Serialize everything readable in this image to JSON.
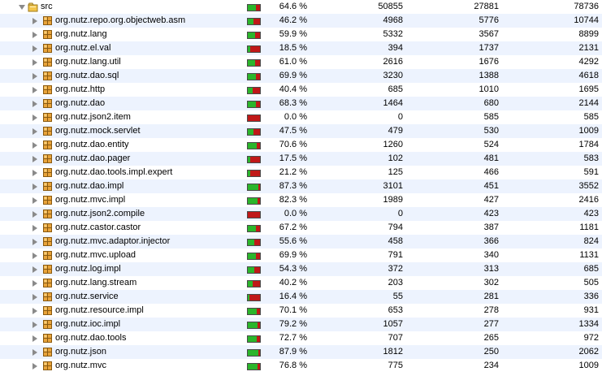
{
  "icons": {
    "expanded": "disclosure-triangle-down-icon",
    "collapsed": "disclosure-triangle-right-icon",
    "root": "source-folder-icon",
    "package": "package-icon"
  },
  "colors": {
    "covered": "#2bb52b",
    "missed": "#c01818",
    "row_alt": "#edf3fe",
    "folder": "#f3c54a",
    "package": "#e8a33a"
  },
  "rows": [
    {
      "name": "src",
      "percent": "64.6 %",
      "coverage": 0.646,
      "covered": "50855",
      "missed": "27881",
      "total": "78736",
      "expanded": true,
      "root": true
    },
    {
      "name": "org.nutz.repo.org.objectweb.asm",
      "percent": "46.2 %",
      "coverage": 0.462,
      "covered": "4968",
      "missed": "5776",
      "total": "10744"
    },
    {
      "name": "org.nutz.lang",
      "percent": "59.9 %",
      "coverage": 0.599,
      "covered": "5332",
      "missed": "3567",
      "total": "8899"
    },
    {
      "name": "org.nutz.el.val",
      "percent": "18.5 %",
      "coverage": 0.185,
      "covered": "394",
      "missed": "1737",
      "total": "2131"
    },
    {
      "name": "org.nutz.lang.util",
      "percent": "61.0 %",
      "coverage": 0.61,
      "covered": "2616",
      "missed": "1676",
      "total": "4292"
    },
    {
      "name": "org.nutz.dao.sql",
      "percent": "69.9 %",
      "coverage": 0.699,
      "covered": "3230",
      "missed": "1388",
      "total": "4618"
    },
    {
      "name": "org.nutz.http",
      "percent": "40.4 %",
      "coverage": 0.404,
      "covered": "685",
      "missed": "1010",
      "total": "1695"
    },
    {
      "name": "org.nutz.dao",
      "percent": "68.3 %",
      "coverage": 0.683,
      "covered": "1464",
      "missed": "680",
      "total": "2144"
    },
    {
      "name": "org.nutz.json2.item",
      "percent": "0.0 %",
      "coverage": 0.0,
      "covered": "0",
      "missed": "585",
      "total": "585"
    },
    {
      "name": "org.nutz.mock.servlet",
      "percent": "47.5 %",
      "coverage": 0.475,
      "covered": "479",
      "missed": "530",
      "total": "1009"
    },
    {
      "name": "org.nutz.dao.entity",
      "percent": "70.6 %",
      "coverage": 0.706,
      "covered": "1260",
      "missed": "524",
      "total": "1784"
    },
    {
      "name": "org.nutz.dao.pager",
      "percent": "17.5 %",
      "coverage": 0.175,
      "covered": "102",
      "missed": "481",
      "total": "583"
    },
    {
      "name": "org.nutz.dao.tools.impl.expert",
      "percent": "21.2 %",
      "coverage": 0.212,
      "covered": "125",
      "missed": "466",
      "total": "591"
    },
    {
      "name": "org.nutz.dao.impl",
      "percent": "87.3 %",
      "coverage": 0.873,
      "covered": "3101",
      "missed": "451",
      "total": "3552"
    },
    {
      "name": "org.nutz.mvc.impl",
      "percent": "82.3 %",
      "coverage": 0.823,
      "covered": "1989",
      "missed": "427",
      "total": "2416"
    },
    {
      "name": "org.nutz.json2.compile",
      "percent": "0.0 %",
      "coverage": 0.0,
      "covered": "0",
      "missed": "423",
      "total": "423"
    },
    {
      "name": "org.nutz.castor.castor",
      "percent": "67.2 %",
      "coverage": 0.672,
      "covered": "794",
      "missed": "387",
      "total": "1181"
    },
    {
      "name": "org.nutz.mvc.adaptor.injector",
      "percent": "55.6 %",
      "coverage": 0.556,
      "covered": "458",
      "missed": "366",
      "total": "824"
    },
    {
      "name": "org.nutz.mvc.upload",
      "percent": "69.9 %",
      "coverage": 0.699,
      "covered": "791",
      "missed": "340",
      "total": "1131"
    },
    {
      "name": "org.nutz.log.impl",
      "percent": "54.3 %",
      "coverage": 0.543,
      "covered": "372",
      "missed": "313",
      "total": "685"
    },
    {
      "name": "org.nutz.lang.stream",
      "percent": "40.2 %",
      "coverage": 0.402,
      "covered": "203",
      "missed": "302",
      "total": "505"
    },
    {
      "name": "org.nutz.service",
      "percent": "16.4 %",
      "coverage": 0.164,
      "covered": "55",
      "missed": "281",
      "total": "336"
    },
    {
      "name": "org.nutz.resource.impl",
      "percent": "70.1 %",
      "coverage": 0.701,
      "covered": "653",
      "missed": "278",
      "total": "931"
    },
    {
      "name": "org.nutz.ioc.impl",
      "percent": "79.2 %",
      "coverage": 0.792,
      "covered": "1057",
      "missed": "277",
      "total": "1334"
    },
    {
      "name": "org.nutz.dao.tools",
      "percent": "72.7 %",
      "coverage": 0.727,
      "covered": "707",
      "missed": "265",
      "total": "972"
    },
    {
      "name": "org.nutz.json",
      "percent": "87.9 %",
      "coverage": 0.879,
      "covered": "1812",
      "missed": "250",
      "total": "2062"
    },
    {
      "name": "org.nutz.mvc",
      "percent": "76.8 %",
      "coverage": 0.768,
      "covered": "775",
      "missed": "234",
      "total": "1009"
    }
  ]
}
